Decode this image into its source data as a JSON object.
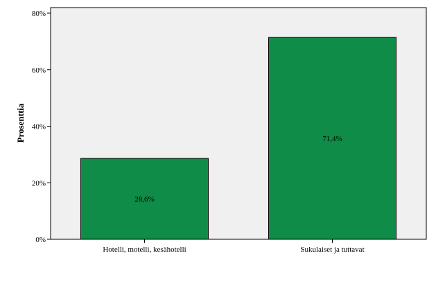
{
  "chart_data": {
    "type": "bar",
    "categories": [
      "Hotelli, motelli, kesähotelli",
      "Sukulaiset ja tuttavat"
    ],
    "values": [
      28.6,
      71.4
    ],
    "value_labels": [
      "28,6%",
      "71,4%"
    ],
    "title": "",
    "xlabel": "",
    "ylabel": "Prosenttia",
    "ylim": [
      0,
      80
    ],
    "yticks": [
      0,
      20,
      40,
      60,
      80
    ],
    "ytick_labels": [
      "0%",
      "20%",
      "40%",
      "60%",
      "80%"
    ],
    "grid": false,
    "legend": "none"
  },
  "colors": {
    "bar": "#0f8c47",
    "plot_background": "#f0f0f0",
    "axis": "#000000"
  }
}
